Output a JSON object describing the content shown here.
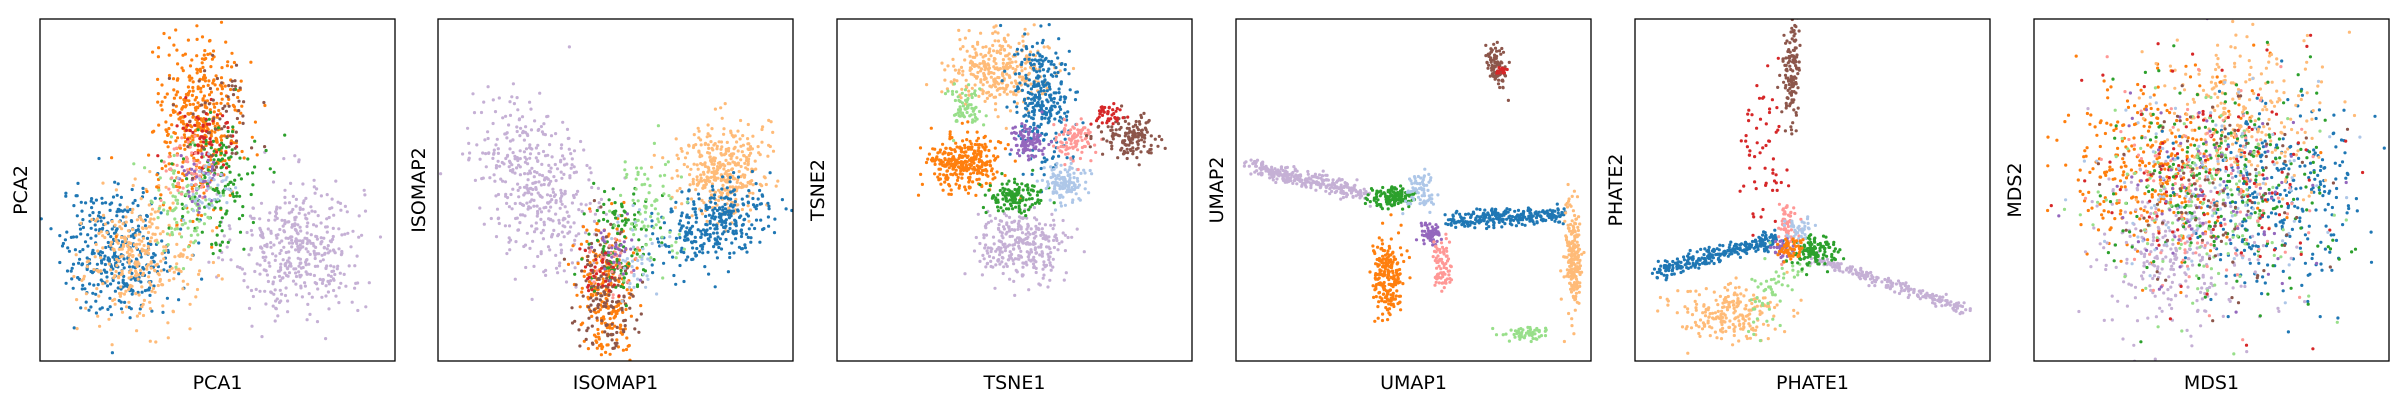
{
  "palette": {
    "blue": "#1f77b4",
    "light_blue": "#aec7e8",
    "orange": "#ff7f0e",
    "light_orange": "#ffbb78",
    "green": "#2ca02c",
    "light_green": "#98df8a",
    "red": "#d62728",
    "pink": "#ff9896",
    "purple": "#9467bd",
    "lavender": "#c5b0d5",
    "brown": "#8c564b"
  },
  "chart_data": [
    {
      "type": "scatter",
      "xlabel": "PCA1",
      "ylabel": "PCA2",
      "xticks": [],
      "yticks": [],
      "grid": false,
      "clusters": [
        {
          "color": "lavender",
          "x": 0.73,
          "y": 0.33,
          "sx": 0.09,
          "sy": 0.1,
          "n": 420
        },
        {
          "color": "blue",
          "x": 0.22,
          "y": 0.32,
          "sx": 0.08,
          "sy": 0.09,
          "n": 380
        },
        {
          "color": "light_orange",
          "x": 0.28,
          "y": 0.3,
          "sx": 0.08,
          "sy": 0.09,
          "n": 300
        },
        {
          "color": "orange",
          "x": 0.45,
          "y": 0.7,
          "sx": 0.06,
          "sy": 0.12,
          "n": 420
        },
        {
          "color": "green",
          "x": 0.5,
          "y": 0.52,
          "sx": 0.06,
          "sy": 0.1,
          "n": 140
        },
        {
          "color": "light_green",
          "x": 0.4,
          "y": 0.45,
          "sx": 0.05,
          "sy": 0.08,
          "n": 90
        },
        {
          "color": "red",
          "x": 0.46,
          "y": 0.66,
          "sx": 0.04,
          "sy": 0.06,
          "n": 60
        },
        {
          "color": "pink",
          "x": 0.42,
          "y": 0.55,
          "sx": 0.04,
          "sy": 0.05,
          "n": 50
        },
        {
          "color": "purple",
          "x": 0.45,
          "y": 0.52,
          "sx": 0.04,
          "sy": 0.05,
          "n": 40
        },
        {
          "color": "light_blue",
          "x": 0.48,
          "y": 0.5,
          "sx": 0.04,
          "sy": 0.05,
          "n": 40
        },
        {
          "color": "brown",
          "x": 0.5,
          "y": 0.72,
          "sx": 0.05,
          "sy": 0.08,
          "n": 60
        }
      ]
    },
    {
      "type": "scatter",
      "xlabel": "ISOMAP1",
      "ylabel": "ISOMAP2",
      "xticks": [],
      "yticks": [],
      "grid": false,
      "clusters": [
        {
          "color": "lavender",
          "x": 0.18,
          "y": 0.67,
          "sx": 0.07,
          "sy": 0.09,
          "n": 420,
          "dx": 0.18,
          "dy": -0.3
        },
        {
          "color": "light_orange",
          "x": 0.8,
          "y": 0.56,
          "sx": 0.06,
          "sy": 0.07,
          "n": 380
        },
        {
          "color": "blue",
          "x": 0.7,
          "y": 0.34,
          "sx": 0.06,
          "sy": 0.05,
          "n": 320,
          "dx": 0.16,
          "dy": 0.12
        },
        {
          "color": "orange",
          "x": 0.48,
          "y": 0.2,
          "sx": 0.04,
          "sy": 0.1,
          "n": 260
        },
        {
          "color": "brown",
          "x": 0.47,
          "y": 0.22,
          "sx": 0.04,
          "sy": 0.09,
          "n": 160
        },
        {
          "color": "green",
          "x": 0.52,
          "y": 0.35,
          "sx": 0.05,
          "sy": 0.08,
          "n": 110
        },
        {
          "color": "light_green",
          "x": 0.6,
          "y": 0.45,
          "sx": 0.05,
          "sy": 0.08,
          "n": 80
        },
        {
          "color": "light_blue",
          "x": 0.56,
          "y": 0.3,
          "sx": 0.04,
          "sy": 0.06,
          "n": 40
        },
        {
          "color": "pink",
          "x": 0.48,
          "y": 0.3,
          "sx": 0.04,
          "sy": 0.05,
          "n": 30
        },
        {
          "color": "purple",
          "x": 0.5,
          "y": 0.32,
          "sx": 0.03,
          "sy": 0.04,
          "n": 30
        },
        {
          "color": "red",
          "x": 0.46,
          "y": 0.25,
          "sx": 0.03,
          "sy": 0.05,
          "n": 30
        }
      ]
    },
    {
      "type": "scatter",
      "xlabel": "TSNE1",
      "ylabel": "TSNE2",
      "xticks": [],
      "yticks": [],
      "grid": false,
      "clusters": [
        {
          "color": "light_orange",
          "x": 0.45,
          "y": 0.85,
          "sx": 0.07,
          "sy": 0.05,
          "n": 320
        },
        {
          "color": "blue",
          "x": 0.58,
          "y": 0.76,
          "sx": 0.04,
          "sy": 0.09,
          "n": 300
        },
        {
          "color": "orange",
          "x": 0.36,
          "y": 0.58,
          "sx": 0.05,
          "sy": 0.04,
          "n": 320
        },
        {
          "color": "lavender",
          "x": 0.52,
          "y": 0.34,
          "sx": 0.06,
          "sy": 0.05,
          "n": 300
        },
        {
          "color": "green",
          "x": 0.5,
          "y": 0.48,
          "sx": 0.04,
          "sy": 0.025,
          "n": 140
        },
        {
          "color": "light_blue",
          "x": 0.64,
          "y": 0.52,
          "sx": 0.03,
          "sy": 0.03,
          "n": 120
        },
        {
          "color": "pink",
          "x": 0.66,
          "y": 0.64,
          "sx": 0.03,
          "sy": 0.03,
          "n": 90
        },
        {
          "color": "purple",
          "x": 0.54,
          "y": 0.64,
          "sx": 0.025,
          "sy": 0.025,
          "n": 90
        },
        {
          "color": "light_green",
          "x": 0.36,
          "y": 0.74,
          "sx": 0.025,
          "sy": 0.03,
          "n": 70
        },
        {
          "color": "brown",
          "x": 0.82,
          "y": 0.65,
          "sx": 0.04,
          "sy": 0.03,
          "n": 140
        },
        {
          "color": "red",
          "x": 0.76,
          "y": 0.72,
          "sx": 0.02,
          "sy": 0.02,
          "n": 40
        }
      ]
    },
    {
      "type": "scatter",
      "xlabel": "UMAP1",
      "ylabel": "UMAP2",
      "xticks": [],
      "yticks": [],
      "grid": false,
      "clusters": [
        {
          "color": "brown",
          "x": 0.72,
          "y": 0.9,
          "sx": 0.012,
          "sy": 0.025,
          "n": 90,
          "dx": 0.03,
          "dy": -0.08
        },
        {
          "color": "red",
          "x": 0.75,
          "y": 0.85,
          "sx": 0.008,
          "sy": 0.012,
          "n": 15
        },
        {
          "color": "lavender",
          "x": 0.04,
          "y": 0.57,
          "sx": 0.012,
          "sy": 0.012,
          "n": 300,
          "dx": 0.32,
          "dy": -0.08
        },
        {
          "color": "green",
          "x": 0.44,
          "y": 0.48,
          "sx": 0.03,
          "sy": 0.015,
          "n": 140
        },
        {
          "color": "light_blue",
          "x": 0.52,
          "y": 0.5,
          "sx": 0.02,
          "sy": 0.03,
          "n": 70
        },
        {
          "color": "purple",
          "x": 0.55,
          "y": 0.37,
          "sx": 0.015,
          "sy": 0.015,
          "n": 60
        },
        {
          "color": "orange",
          "x": 0.43,
          "y": 0.24,
          "sx": 0.02,
          "sy": 0.06,
          "n": 220
        },
        {
          "color": "pink",
          "x": 0.58,
          "y": 0.28,
          "sx": 0.012,
          "sy": 0.04,
          "n": 80
        },
        {
          "color": "blue",
          "x": 0.6,
          "y": 0.41,
          "sx": 0.012,
          "sy": 0.012,
          "n": 260,
          "dx": 0.32,
          "dy": 0.02
        },
        {
          "color": "light_orange",
          "x": 0.95,
          "y": 0.3,
          "sx": 0.012,
          "sy": 0.08,
          "n": 200
        },
        {
          "color": "light_green",
          "x": 0.82,
          "y": 0.08,
          "sx": 0.03,
          "sy": 0.012,
          "n": 60
        }
      ]
    },
    {
      "type": "scatter",
      "xlabel": "PHATE1",
      "ylabel": "PHATE2",
      "xticks": [],
      "yticks": [],
      "grid": false,
      "clusters": [
        {
          "color": "brown",
          "x": 0.43,
          "y": 0.8,
          "sx": 0.012,
          "sy": 0.07,
          "n": 130,
          "dx": 0.02,
          "dy": 0.1
        },
        {
          "color": "red",
          "x": 0.36,
          "y": 0.6,
          "sx": 0.04,
          "sy": 0.12,
          "n": 60
        },
        {
          "color": "blue",
          "x": 0.06,
          "y": 0.26,
          "sx": 0.008,
          "sy": 0.012,
          "n": 280,
          "dx": 0.34,
          "dy": 0.1
        },
        {
          "color": "light_orange",
          "x": 0.26,
          "y": 0.14,
          "sx": 0.08,
          "sy": 0.04,
          "n": 220
        },
        {
          "color": "light_green",
          "x": 0.34,
          "y": 0.12,
          "sx": 0.03,
          "sy": 0.03,
          "n": 60,
          "dx": 0.1,
          "dy": 0.18
        },
        {
          "color": "lavender",
          "x": 0.5,
          "y": 0.3,
          "sx": 0.008,
          "sy": 0.008,
          "n": 220,
          "dx": 0.44,
          "dy": -0.15
        },
        {
          "color": "green",
          "x": 0.5,
          "y": 0.32,
          "sx": 0.03,
          "sy": 0.025,
          "n": 120
        },
        {
          "color": "pink",
          "x": 0.43,
          "y": 0.4,
          "sx": 0.015,
          "sy": 0.04,
          "n": 60
        },
        {
          "color": "light_blue",
          "x": 0.46,
          "y": 0.38,
          "sx": 0.02,
          "sy": 0.02,
          "n": 40
        },
        {
          "color": "purple",
          "x": 0.42,
          "y": 0.33,
          "sx": 0.015,
          "sy": 0.015,
          "n": 40
        },
        {
          "color": "orange",
          "x": 0.44,
          "y": 0.33,
          "sx": 0.02,
          "sy": 0.015,
          "n": 50
        }
      ]
    },
    {
      "type": "scatter",
      "xlabel": "MDS1",
      "ylabel": "MDS2",
      "xticks": [],
      "yticks": [],
      "grid": false,
      "clusters": [
        {
          "color": "orange",
          "x": 0.32,
          "y": 0.58,
          "sx": 0.13,
          "sy": 0.14,
          "n": 320
        },
        {
          "color": "blue",
          "x": 0.68,
          "y": 0.48,
          "sx": 0.13,
          "sy": 0.14,
          "n": 300
        },
        {
          "color": "light_orange",
          "x": 0.58,
          "y": 0.7,
          "sx": 0.12,
          "sy": 0.12,
          "n": 260
        },
        {
          "color": "lavender",
          "x": 0.4,
          "y": 0.32,
          "sx": 0.12,
          "sy": 0.12,
          "n": 280
        },
        {
          "color": "green",
          "x": 0.55,
          "y": 0.5,
          "sx": 0.16,
          "sy": 0.16,
          "n": 220
        },
        {
          "color": "light_green",
          "x": 0.46,
          "y": 0.44,
          "sx": 0.15,
          "sy": 0.15,
          "n": 150
        },
        {
          "color": "red",
          "x": 0.5,
          "y": 0.55,
          "sx": 0.16,
          "sy": 0.16,
          "n": 120
        },
        {
          "color": "pink",
          "x": 0.48,
          "y": 0.48,
          "sx": 0.15,
          "sy": 0.15,
          "n": 120
        },
        {
          "color": "purple",
          "x": 0.5,
          "y": 0.5,
          "sx": 0.15,
          "sy": 0.15,
          "n": 100
        },
        {
          "color": "light_blue",
          "x": 0.52,
          "y": 0.52,
          "sx": 0.15,
          "sy": 0.15,
          "n": 100
        },
        {
          "color": "brown",
          "x": 0.5,
          "y": 0.5,
          "sx": 0.15,
          "sy": 0.15,
          "n": 100
        }
      ]
    }
  ]
}
